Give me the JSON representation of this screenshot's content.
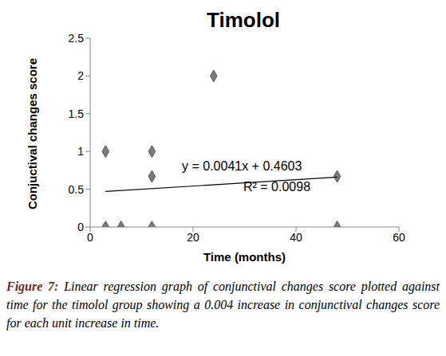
{
  "chart_data": {
    "type": "scatter",
    "title": "Timolol",
    "x_label": "Time (months)",
    "y_label": "Conjuctival changes score",
    "x": [
      3,
      3,
      6,
      12,
      12,
      12,
      24,
      48,
      48
    ],
    "values": [
      1,
      0,
      0,
      1,
      0.67,
      0,
      2,
      0.67,
      0
    ],
    "color": "#7a7a7a",
    "marker": "diamond",
    "xlim": [
      0,
      60
    ],
    "xticks": [
      0,
      20,
      40,
      60
    ],
    "ylim": [
      0,
      2.5
    ],
    "yticks": [
      0,
      0.5,
      1,
      1.5,
      2,
      2.5
    ],
    "grid": false,
    "trendline": {
      "x": [
        3,
        48
      ],
      "values": [
        0.47,
        0.66
      ],
      "color": "#000000"
    },
    "annotations": [
      "y = 0.0041x + 0.4603",
      "R² = 0.0098"
    ],
    "caption_label": "Figure 7:",
    "caption": "Linear regression graph of conjunctival changes score plotted against time for the timolol group showing a 0.004 increase in conjunctival changes score for each unit increase in time."
  }
}
